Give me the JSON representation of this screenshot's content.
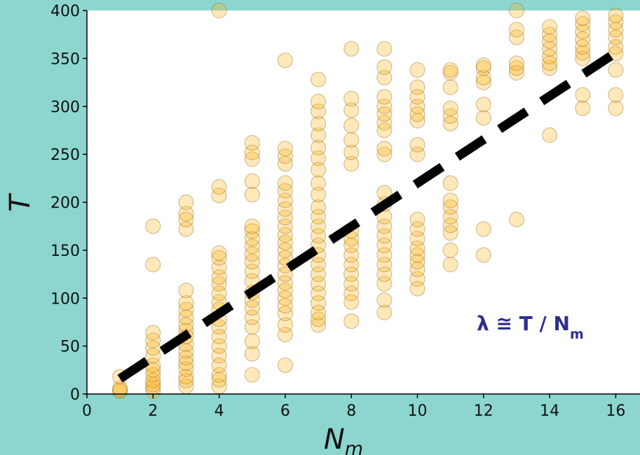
{
  "chart_data": {
    "type": "scatter",
    "xlabel": "N",
    "xlabel_sub": "m",
    "ylabel": "T",
    "xlim": [
      0,
      16.8
    ],
    "ylim": [
      0,
      400
    ],
    "x_ticks": [
      0,
      2,
      4,
      6,
      8,
      10,
      12,
      14,
      16
    ],
    "y_ticks": [
      0,
      50,
      100,
      150,
      200,
      250,
      300,
      350,
      400
    ],
    "grid": false,
    "annotation": {
      "text": "λ ≅ T / N",
      "sub": "m"
    },
    "marker_color": "#ffb31a",
    "marker_edge_color": "#8a6a1a",
    "trend_line": {
      "style": "dashed",
      "color": "#000000",
      "x": [
        1,
        16
      ],
      "y": [
        16,
        356
      ]
    },
    "points": [
      [
        1,
        3
      ],
      [
        1,
        4
      ],
      [
        1,
        6
      ],
      [
        1,
        18
      ],
      [
        2,
        3
      ],
      [
        2,
        7
      ],
      [
        2,
        10
      ],
      [
        2,
        14
      ],
      [
        2,
        20
      ],
      [
        2,
        25
      ],
      [
        2,
        30
      ],
      [
        2,
        40
      ],
      [
        2,
        48
      ],
      [
        2,
        56
      ],
      [
        2,
        64
      ],
      [
        2,
        135
      ],
      [
        2,
        175
      ],
      [
        3,
        8
      ],
      [
        3,
        14
      ],
      [
        3,
        18
      ],
      [
        3,
        26
      ],
      [
        3,
        32
      ],
      [
        3,
        38
      ],
      [
        3,
        45
      ],
      [
        3,
        52
      ],
      [
        3,
        60
      ],
      [
        3,
        66
      ],
      [
        3,
        72
      ],
      [
        3,
        80
      ],
      [
        3,
        88
      ],
      [
        3,
        95
      ],
      [
        3,
        108
      ],
      [
        3,
        172
      ],
      [
        3,
        182
      ],
      [
        3,
        188
      ],
      [
        3,
        200
      ],
      [
        4,
        8
      ],
      [
        4,
        15
      ],
      [
        4,
        20
      ],
      [
        4,
        30
      ],
      [
        4,
        40
      ],
      [
        4,
        50
      ],
      [
        4,
        60
      ],
      [
        4,
        70
      ],
      [
        4,
        78
      ],
      [
        4,
        88
      ],
      [
        4,
        96
      ],
      [
        4,
        105
      ],
      [
        4,
        115
      ],
      [
        4,
        122
      ],
      [
        4,
        132
      ],
      [
        4,
        142
      ],
      [
        4,
        147
      ],
      [
        4,
        207
      ],
      [
        4,
        216
      ],
      [
        4,
        400
      ],
      [
        5,
        20
      ],
      [
        5,
        42
      ],
      [
        5,
        55
      ],
      [
        5,
        70
      ],
      [
        5,
        80
      ],
      [
        5,
        90
      ],
      [
        5,
        98
      ],
      [
        5,
        106
      ],
      [
        5,
        118
      ],
      [
        5,
        128
      ],
      [
        5,
        138
      ],
      [
        5,
        146
      ],
      [
        5,
        154
      ],
      [
        5,
        162
      ],
      [
        5,
        170
      ],
      [
        5,
        175
      ],
      [
        5,
        208
      ],
      [
        5,
        222
      ],
      [
        5,
        245
      ],
      [
        5,
        252
      ],
      [
        5,
        262
      ],
      [
        6,
        30
      ],
      [
        6,
        62
      ],
      [
        6,
        72
      ],
      [
        6,
        84
      ],
      [
        6,
        92
      ],
      [
        6,
        100
      ],
      [
        6,
        108
      ],
      [
        6,
        116
      ],
      [
        6,
        125
      ],
      [
        6,
        134
      ],
      [
        6,
        142
      ],
      [
        6,
        150
      ],
      [
        6,
        158
      ],
      [
        6,
        166
      ],
      [
        6,
        175
      ],
      [
        6,
        184
      ],
      [
        6,
        193
      ],
      [
        6,
        202
      ],
      [
        6,
        212
      ],
      [
        6,
        220
      ],
      [
        6,
        240
      ],
      [
        6,
        248
      ],
      [
        6,
        256
      ],
      [
        6,
        348
      ],
      [
        7,
        72
      ],
      [
        7,
        78
      ],
      [
        7,
        85
      ],
      [
        7,
        95
      ],
      [
        7,
        105
      ],
      [
        7,
        115
      ],
      [
        7,
        125
      ],
      [
        7,
        135
      ],
      [
        7,
        145
      ],
      [
        7,
        155
      ],
      [
        7,
        165
      ],
      [
        7,
        175
      ],
      [
        7,
        185
      ],
      [
        7,
        195
      ],
      [
        7,
        208
      ],
      [
        7,
        220
      ],
      [
        7,
        234
      ],
      [
        7,
        246
      ],
      [
        7,
        257
      ],
      [
        7,
        270
      ],
      [
        7,
        282
      ],
      [
        7,
        295
      ],
      [
        7,
        305
      ],
      [
        7,
        328
      ],
      [
        8,
        76
      ],
      [
        8,
        96
      ],
      [
        8,
        105
      ],
      [
        8,
        115
      ],
      [
        8,
        125
      ],
      [
        8,
        135
      ],
      [
        8,
        145
      ],
      [
        8,
        155
      ],
      [
        8,
        162
      ],
      [
        8,
        170
      ],
      [
        8,
        240
      ],
      [
        8,
        252
      ],
      [
        8,
        265
      ],
      [
        8,
        280
      ],
      [
        8,
        296
      ],
      [
        8,
        308
      ],
      [
        8,
        360
      ],
      [
        9,
        85
      ],
      [
        9,
        98
      ],
      [
        9,
        115
      ],
      [
        9,
        125
      ],
      [
        9,
        135
      ],
      [
        9,
        145
      ],
      [
        9,
        155
      ],
      [
        9,
        165
      ],
      [
        9,
        175
      ],
      [
        9,
        185
      ],
      [
        9,
        198
      ],
      [
        9,
        210
      ],
      [
        9,
        250
      ],
      [
        9,
        256
      ],
      [
        9,
        275
      ],
      [
        9,
        283
      ],
      [
        9,
        292
      ],
      [
        9,
        300
      ],
      [
        9,
        310
      ],
      [
        9,
        330
      ],
      [
        9,
        341
      ],
      [
        9,
        360
      ],
      [
        10,
        110
      ],
      [
        10,
        120
      ],
      [
        10,
        130
      ],
      [
        10,
        138
      ],
      [
        10,
        145
      ],
      [
        10,
        152
      ],
      [
        10,
        162
      ],
      [
        10,
        172
      ],
      [
        10,
        182
      ],
      [
        10,
        250
      ],
      [
        10,
        260
      ],
      [
        10,
        285
      ],
      [
        10,
        292
      ],
      [
        10,
        300
      ],
      [
        10,
        310
      ],
      [
        10,
        320
      ],
      [
        10,
        338
      ],
      [
        11,
        135
      ],
      [
        11,
        150
      ],
      [
        11,
        168
      ],
      [
        11,
        176
      ],
      [
        11,
        185
      ],
      [
        11,
        195
      ],
      [
        11,
        202
      ],
      [
        11,
        220
      ],
      [
        11,
        282
      ],
      [
        11,
        290
      ],
      [
        11,
        298
      ],
      [
        11,
        320
      ],
      [
        11,
        335
      ],
      [
        11,
        338
      ],
      [
        12,
        145
      ],
      [
        12,
        172
      ],
      [
        12,
        288
      ],
      [
        12,
        302
      ],
      [
        12,
        325
      ],
      [
        12,
        330
      ],
      [
        12,
        340
      ],
      [
        12,
        343
      ],
      [
        13,
        182
      ],
      [
        13,
        335
      ],
      [
        13,
        340
      ],
      [
        13,
        345
      ],
      [
        13,
        372
      ],
      [
        13,
        380
      ],
      [
        13,
        400
      ],
      [
        14,
        270
      ],
      [
        14,
        340
      ],
      [
        14,
        345
      ],
      [
        14,
        352
      ],
      [
        14,
        360
      ],
      [
        14,
        368
      ],
      [
        14,
        375
      ],
      [
        14,
        383
      ],
      [
        15,
        298
      ],
      [
        15,
        312
      ],
      [
        15,
        350
      ],
      [
        15,
        356
      ],
      [
        15,
        362
      ],
      [
        15,
        370
      ],
      [
        15,
        378
      ],
      [
        15,
        386
      ],
      [
        15,
        392
      ],
      [
        16,
        298
      ],
      [
        16,
        312
      ],
      [
        16,
        338
      ],
      [
        16,
        355
      ],
      [
        16,
        362
      ],
      [
        16,
        372
      ],
      [
        16,
        380
      ],
      [
        16,
        388
      ],
      [
        16,
        395
      ]
    ]
  }
}
